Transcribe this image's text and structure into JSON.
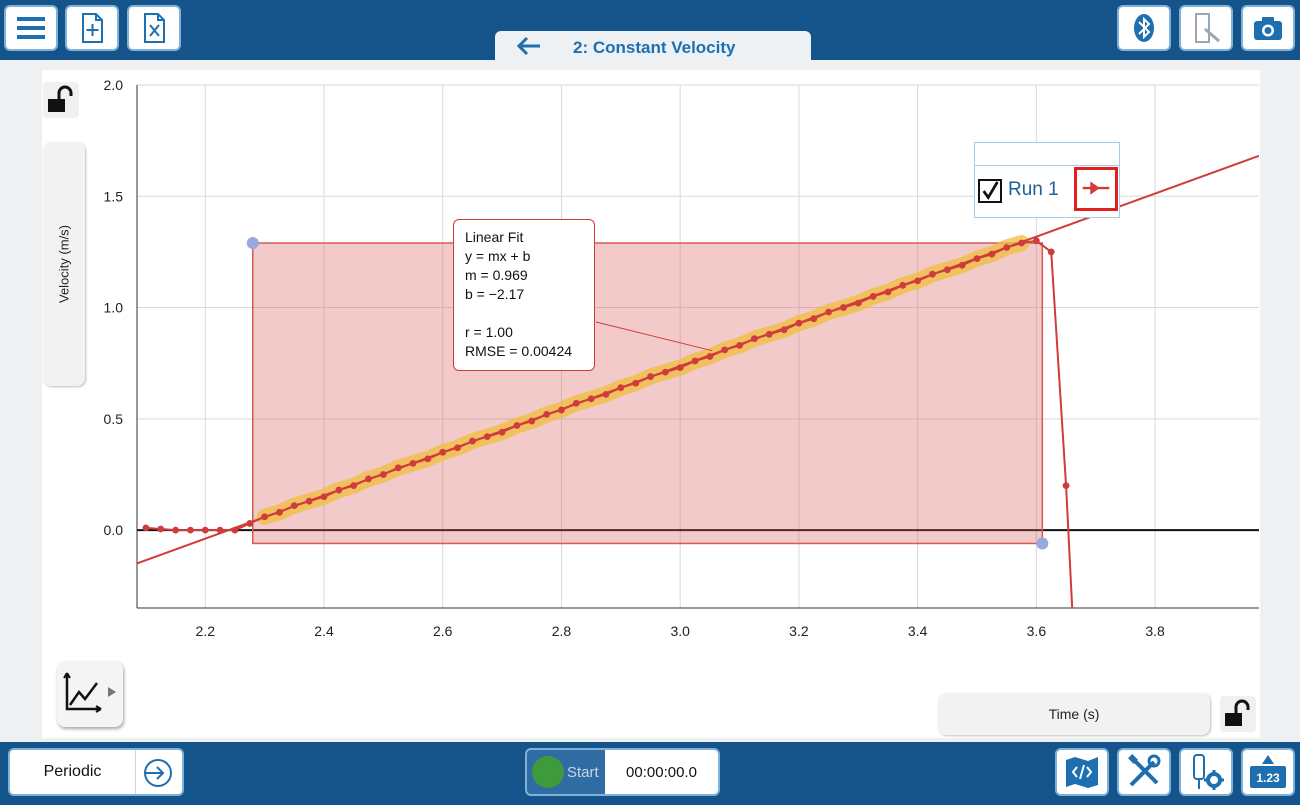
{
  "header": {
    "page_title": "2: Constant Velocity"
  },
  "toolbar": {
    "left_icons": [
      "menu-icon",
      "new-file-icon",
      "excel-file-icon"
    ],
    "right_icons": [
      "bluetooth-icon",
      "sensor-icon",
      "camera-icon"
    ]
  },
  "graph": {
    "y_axis_label": "Velocity (m/s)",
    "x_axis_label": "Time (s)",
    "legend": {
      "run_label": "Run 1",
      "checked": true
    }
  },
  "chart_data": {
    "type": "scatter",
    "xlim": [
      2.085,
      3.975
    ],
    "ylim": [
      -0.35,
      2.0
    ],
    "x_ticks": [
      "2.2",
      "2.4",
      "2.6",
      "2.8",
      "3.0",
      "3.2",
      "3.4",
      "3.6",
      "3.8"
    ],
    "x_tick_values": [
      2.2,
      2.4,
      2.6,
      2.8,
      3.0,
      3.2,
      3.4,
      3.6,
      3.8
    ],
    "y_ticks": [
      "0.0",
      "0.5",
      "1.0",
      "1.5",
      "2.0"
    ],
    "y_tick_values": [
      0.0,
      0.5,
      1.0,
      1.5,
      2.0
    ],
    "grid": true,
    "legend_position": "top-right",
    "series": [
      {
        "name": "Run 1",
        "color": "#d03b3b",
        "x": [
          2.1,
          2.125,
          2.15,
          2.175,
          2.2,
          2.225,
          2.25,
          2.275,
          2.3,
          2.325,
          2.35,
          2.375,
          2.4,
          2.425,
          2.45,
          2.475,
          2.5,
          2.525,
          2.55,
          2.575,
          2.6,
          2.625,
          2.65,
          2.675,
          2.7,
          2.725,
          2.75,
          2.775,
          2.8,
          2.825,
          2.85,
          2.875,
          2.9,
          2.925,
          2.95,
          2.975,
          3.0,
          3.025,
          3.05,
          3.075,
          3.1,
          3.125,
          3.15,
          3.175,
          3.2,
          3.225,
          3.25,
          3.275,
          3.3,
          3.325,
          3.35,
          3.375,
          3.4,
          3.425,
          3.45,
          3.475,
          3.5,
          3.525,
          3.55,
          3.575,
          3.6,
          3.625,
          3.65
        ],
        "y": [
          0.01,
          0.005,
          0.0,
          0.0,
          0.0,
          0.0,
          0.0,
          0.03,
          0.06,
          0.08,
          0.11,
          0.13,
          0.15,
          0.18,
          0.2,
          0.23,
          0.25,
          0.28,
          0.3,
          0.32,
          0.35,
          0.37,
          0.4,
          0.42,
          0.44,
          0.47,
          0.49,
          0.52,
          0.54,
          0.57,
          0.59,
          0.61,
          0.64,
          0.66,
          0.69,
          0.71,
          0.73,
          0.76,
          0.78,
          0.81,
          0.83,
          0.86,
          0.88,
          0.9,
          0.93,
          0.95,
          0.98,
          1.0,
          1.02,
          1.05,
          1.07,
          1.1,
          1.12,
          1.15,
          1.17,
          1.19,
          1.22,
          1.24,
          1.27,
          1.29,
          1.3,
          1.25,
          0.2
        ]
      }
    ],
    "selection_region": {
      "x_start": 2.28,
      "x_end": 3.61,
      "y_top": 1.29,
      "y_bottom": -0.06
    },
    "linear_fit": {
      "title": "Linear Fit",
      "equation": "y = mx + b",
      "m_label": "m = 0.969",
      "b_label": "b = −2.17",
      "r_label": "r = 1.00",
      "rmse_label": "RMSE = 0.00424",
      "m": 0.969,
      "b": -2.17
    }
  },
  "footer": {
    "collection_mode": "Periodic",
    "start_label": "Start",
    "timer": "00:00:00.0",
    "meter_label": "1.23",
    "right_icons": [
      "graph-analysis-icon",
      "tools-icon",
      "sensor-settings-icon",
      "meter-icon"
    ]
  }
}
